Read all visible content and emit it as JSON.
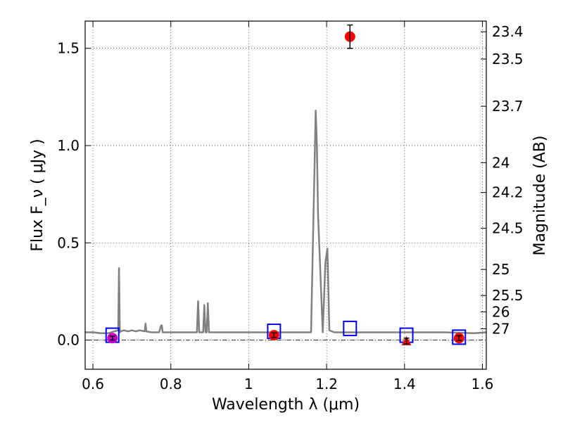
{
  "chart_data": {
    "type": "scatter",
    "xlabel": "Wavelength  λ (μm)",
    "ylabel": "Flux  F_ν  ( μJy )",
    "y2label": "Magnitude (AB)",
    "xlim": [
      0.58,
      1.61
    ],
    "ylim": [
      -0.15,
      1.64
    ],
    "grid": true,
    "x_ticks": [
      0.6,
      0.8,
      1.0,
      1.2,
      1.4,
      1.6
    ],
    "x_tick_labels": [
      "0.6",
      "0.8",
      "1",
      "1.2",
      "1.4",
      "1.6"
    ],
    "y_ticks": [
      0.0,
      0.5,
      1.0,
      1.5
    ],
    "y_tick_labels": [
      "0.0",
      "0.5",
      "1.0",
      "1.5"
    ],
    "y2_ticks": [
      {
        "label": "23.4",
        "flux": 1.585
      },
      {
        "label": "23.5",
        "flux": 1.445
      },
      {
        "label": "23.7",
        "flux": 1.202
      },
      {
        "label": "24",
        "flux": 0.912
      },
      {
        "label": "24.2",
        "flux": 0.759
      },
      {
        "label": "24.5",
        "flux": 0.575
      },
      {
        "label": "25",
        "flux": 0.363
      },
      {
        "label": "25.5",
        "flux": 0.229
      },
      {
        "label": "26",
        "flux": 0.145
      },
      {
        "label": "27",
        "flux": 0.058
      }
    ],
    "series": [
      {
        "kind": "line",
        "color": "#808080",
        "x": [
          0.58,
          0.6,
          0.62,
          0.64,
          0.655,
          0.665,
          0.667,
          0.669,
          0.671,
          0.68,
          0.69,
          0.7,
          0.71,
          0.72,
          0.733,
          0.735,
          0.737,
          0.75,
          0.77,
          0.775,
          0.777,
          0.779,
          0.8,
          0.85,
          0.867,
          0.87,
          0.873,
          0.883,
          0.886,
          0.889,
          0.892,
          0.895,
          0.898,
          0.92,
          0.95,
          1.0,
          1.05,
          1.1,
          1.15,
          1.16,
          1.172,
          1.175,
          1.178,
          1.19,
          1.197,
          1.202,
          1.207,
          1.22,
          1.3,
          1.4,
          1.5,
          1.58,
          1.61
        ],
        "y": [
          0.04,
          0.04,
          0.035,
          0.035,
          0.045,
          0.05,
          0.37,
          0.04,
          0.045,
          0.05,
          0.045,
          0.05,
          0.045,
          0.05,
          0.045,
          0.085,
          0.045,
          0.04,
          0.04,
          0.075,
          0.075,
          0.04,
          0.04,
          0.04,
          0.04,
          0.2,
          0.04,
          0.04,
          0.18,
          0.04,
          0.04,
          0.19,
          0.04,
          0.04,
          0.04,
          0.04,
          0.04,
          0.04,
          0.04,
          0.04,
          1.18,
          1.0,
          0.65,
          0.04,
          0.4,
          0.47,
          0.05,
          0.04,
          0.04,
          0.04,
          0.04,
          0.035,
          0.04
        ]
      },
      {
        "kind": "markers",
        "marker": "square",
        "color": "#0000ff",
        "x": [
          0.65,
          1.065,
          1.26,
          1.405,
          1.54
        ],
        "y": [
          0.025,
          0.045,
          0.06,
          0.025,
          0.015
        ]
      },
      {
        "kind": "markers",
        "marker": "circle",
        "color": "#ff0000",
        "x": [
          1.065,
          1.26,
          1.54
        ],
        "y": [
          0.025,
          1.56,
          0.01
        ],
        "yerr": [
          0.012,
          0.06,
          0.012
        ]
      },
      {
        "kind": "markers",
        "marker": "circle",
        "color": "#cc00cc",
        "x": [
          0.65
        ],
        "y": [
          0.01
        ],
        "yerr": [
          0.01
        ]
      },
      {
        "kind": "markers",
        "marker": "triangle",
        "color": "#ff0000",
        "x": [
          1.405
        ],
        "y": [
          -0.005
        ],
        "yerr": [
          0.015
        ]
      }
    ]
  }
}
